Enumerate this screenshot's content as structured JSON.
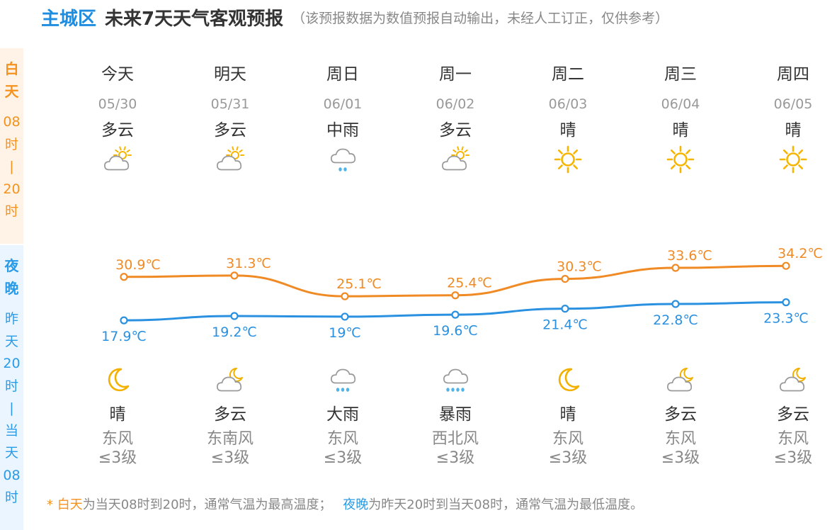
{
  "header": {
    "region": "主城区",
    "title": "未来7天天气客观预报",
    "note": "（该预报数据为数值预报自动输出，未经人工订正，仅供参考）"
  },
  "side_labels": {
    "day": {
      "name": [
        "白",
        "天"
      ],
      "time": [
        "08",
        "时",
        "|",
        "20",
        "时"
      ]
    },
    "night": {
      "name": [
        "夜",
        "晚"
      ],
      "time": [
        "昨",
        "天",
        "20",
        "时",
        "|",
        "当",
        "天",
        "08",
        "时"
      ]
    }
  },
  "days": [
    {
      "weekday": "今天",
      "date": "05/30",
      "day_weather": "多云",
      "day_icon": "partly-cloudy-day-icon",
      "night_weather": "晴",
      "night_icon": "moon-icon",
      "wind_dir": "东风",
      "wind_level": "≤3级"
    },
    {
      "weekday": "明天",
      "date": "05/31",
      "day_weather": "多云",
      "day_icon": "partly-cloudy-day-icon",
      "night_weather": "多云",
      "night_icon": "partly-cloudy-night-icon",
      "wind_dir": "东南风",
      "wind_level": "≤3级"
    },
    {
      "weekday": "周日",
      "date": "06/01",
      "day_weather": "中雨",
      "day_icon": "moderate-rain-icon",
      "night_weather": "大雨",
      "night_icon": "heavy-rain-icon",
      "wind_dir": "东风",
      "wind_level": "≤3级"
    },
    {
      "weekday": "周一",
      "date": "06/02",
      "day_weather": "多云",
      "day_icon": "partly-cloudy-day-icon",
      "night_weather": "暴雨",
      "night_icon": "rainstorm-icon",
      "wind_dir": "西北风",
      "wind_level": "≤3级"
    },
    {
      "weekday": "周二",
      "date": "06/03",
      "day_weather": "晴",
      "day_icon": "sun-icon",
      "night_weather": "晴",
      "night_icon": "moon-icon",
      "wind_dir": "东风",
      "wind_level": "≤3级"
    },
    {
      "weekday": "周三",
      "date": "06/04",
      "day_weather": "晴",
      "day_icon": "sun-icon",
      "night_weather": "多云",
      "night_icon": "partly-cloudy-night-icon",
      "wind_dir": "东风",
      "wind_level": "≤3级"
    },
    {
      "weekday": "周四",
      "date": "06/05",
      "day_weather": "晴",
      "day_icon": "sun-icon",
      "night_weather": "多云",
      "night_icon": "partly-cloudy-night-icon",
      "wind_dir": "东风",
      "wind_level": "≤3级"
    }
  ],
  "chart_data": {
    "type": "line",
    "x": [
      "05/30",
      "05/31",
      "06/01",
      "06/02",
      "06/03",
      "06/04",
      "06/05"
    ],
    "series": [
      {
        "values": [
          30.9,
          31.3,
          25.1,
          25.4,
          30.3,
          33.6,
          34.2
        ],
        "labels": [
          "30.9℃",
          "31.3℃",
          "25.1℃",
          "25.4℃",
          "30.3℃",
          "33.6℃",
          "34.2℃"
        ],
        "color": "#f08a24"
      },
      {
        "values": [
          17.9,
          19.2,
          19.0,
          19.6,
          21.4,
          22.8,
          23.3
        ],
        "labels": [
          "17.9℃",
          "19.2℃",
          "19℃",
          "19.6℃",
          "21.4℃",
          "22.8℃",
          "23.3℃"
        ],
        "color": "#2a90e0"
      }
    ],
    "unit": "℃",
    "grid": false
  },
  "footnote": {
    "star": "* ",
    "day_term": "白天",
    "day_text": "为当天08时到20时，通常气温为最高温度；",
    "night_term": "夜晚",
    "night_text": "为昨天20时到当天08时，通常气温为最低温度。"
  },
  "colors": {
    "accent_blue": "#1e8de0",
    "day_orange": "#f5921e",
    "night_blue": "#2a9be6",
    "sun_yellow": "#f7b500"
  }
}
